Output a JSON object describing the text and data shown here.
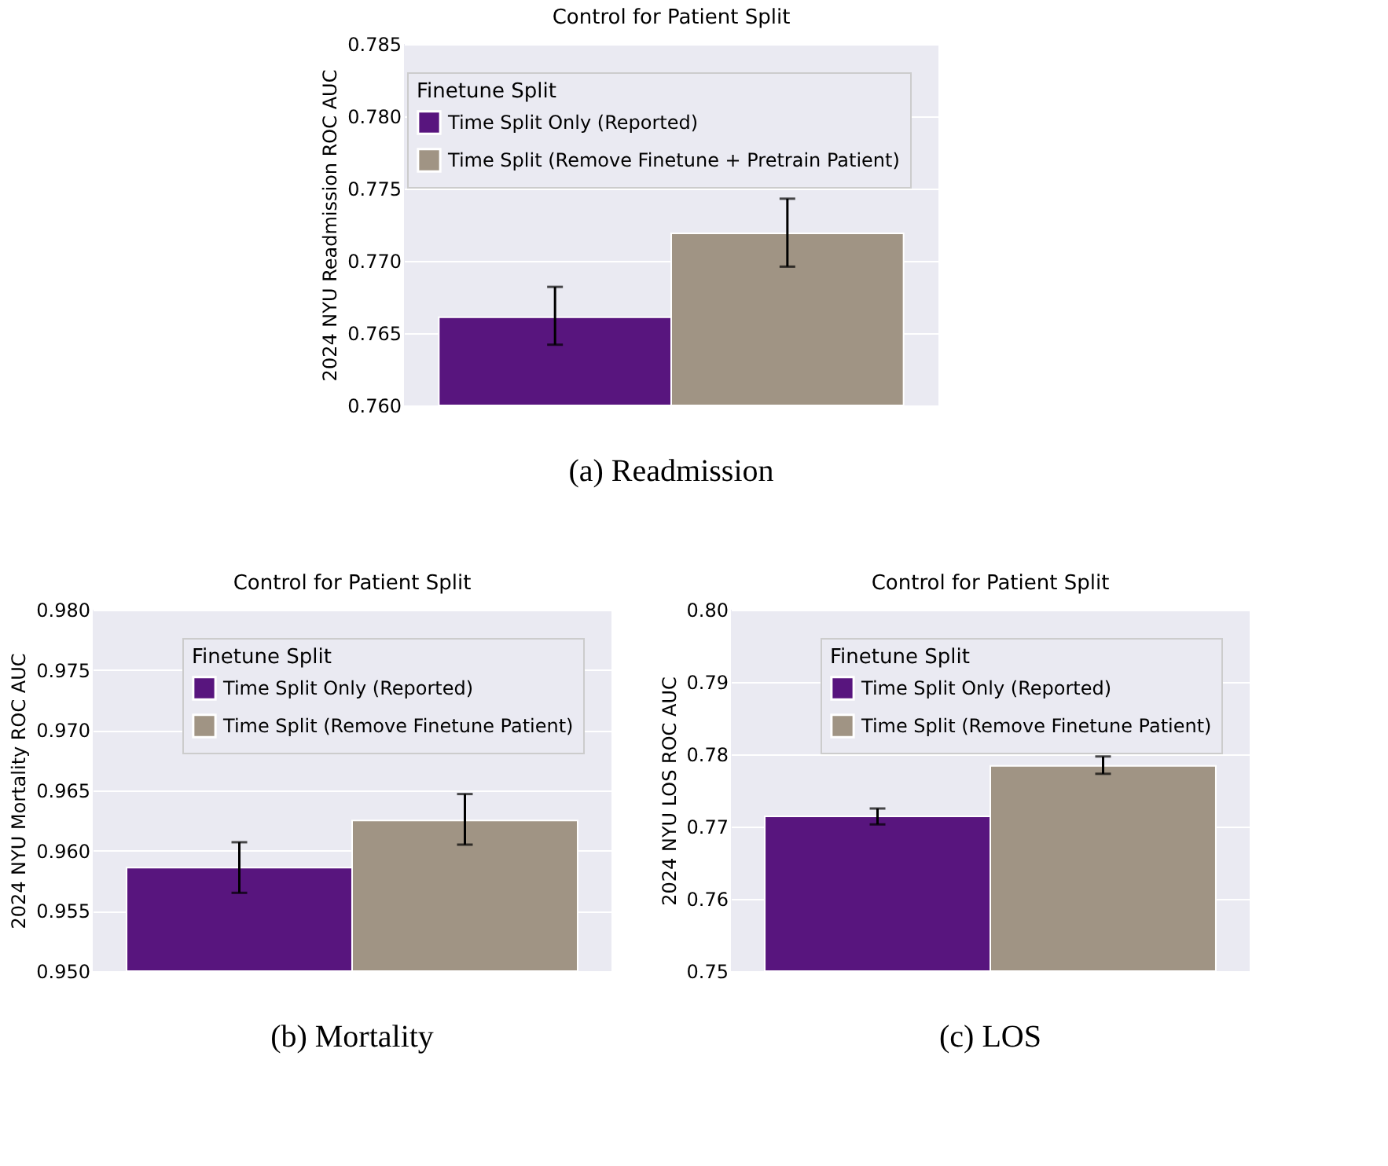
{
  "chart_data": [
    {
      "type": "bar",
      "title": "Control for Patient Split",
      "ylabel": "2024 NYU Readmission ROC AUC",
      "legend_title": "Finetune Split",
      "categories": [
        null
      ],
      "series": [
        {
          "name": "Time Split Only (Reported)",
          "color": "#58157e",
          "values": [
            0.7661
          ],
          "errors": [
            [
              0.7642,
              0.7682
            ]
          ]
        },
        {
          "name": "Time Split (Remove Finetune + Pretrain Patient)",
          "color": "#a09484",
          "values": [
            0.7719
          ],
          "errors": [
            [
              0.7696,
              0.7743
            ]
          ]
        }
      ],
      "ylim": [
        0.76,
        0.785
      ],
      "yticks": [
        {
          "value": 0.76,
          "label": "0.760"
        },
        0.765,
        {
          "value": 0.77,
          "label": "0.770"
        },
        0.775,
        {
          "value": 0.78,
          "label": "0.780"
        },
        0.785
      ],
      "grid": "y",
      "legend": "top right",
      "tick_labels": "y",
      "annotations": [
        "(a) Readmission"
      ]
    },
    {
      "type": "bar",
      "title": "Control for Patient Split",
      "ylabel": "2024 NYU Mortality ROC AUC",
      "legend_title": "Finetune Split",
      "categories": [
        null
      ],
      "series": [
        {
          "name": "Time Split Only (Reported)",
          "color": "#58157e",
          "values": [
            0.9586
          ],
          "errors": [
            [
              0.9565,
              0.9607
            ]
          ]
        },
        {
          "name": "Time Split (Remove Finetune Patient)",
          "color": "#a09484",
          "values": [
            0.9625
          ],
          "errors": [
            [
              0.9605,
              0.9647
            ]
          ]
        }
      ],
      "ylim": [
        0.95,
        0.98
      ],
      "yticks": [
        {
          "value": 0.95,
          "label": "0.950"
        },
        0.955,
        {
          "value": 0.96,
          "label": "0.960"
        },
        0.965,
        {
          "value": 0.97,
          "label": "0.970"
        },
        0.975,
        {
          "value": 0.98,
          "label": "0.980"
        }
      ],
      "grid": "y",
      "legend": "top right",
      "tick_labels": "y",
      "annotations": [
        "(b) Mortality"
      ]
    },
    {
      "type": "bar",
      "title": "Control for Patient Split",
      "ylabel": "2024 NYU LOS ROC AUC",
      "legend_title": "Finetune Split",
      "categories": [
        null
      ],
      "series": [
        {
          "name": "Time Split Only (Reported)",
          "color": "#58157e",
          "values": [
            0.7714
          ],
          "errors": [
            [
              0.7703,
              0.7725
            ]
          ]
        },
        {
          "name": "Time Split (Remove Finetune Patient)",
          "color": "#a09484",
          "values": [
            0.7784
          ],
          "errors": [
            [
              0.7773,
              0.7797
            ]
          ]
        }
      ],
      "ylim": [
        0.75,
        0.8
      ],
      "yticks": [
        0.75,
        0.76,
        0.77,
        0.78,
        0.79,
        {
          "value": 0.8,
          "label": "0.80"
        }
      ],
      "grid": "y",
      "legend": "top right",
      "tick_labels": "y",
      "annotations": [
        "(c) LOS"
      ]
    }
  ]
}
